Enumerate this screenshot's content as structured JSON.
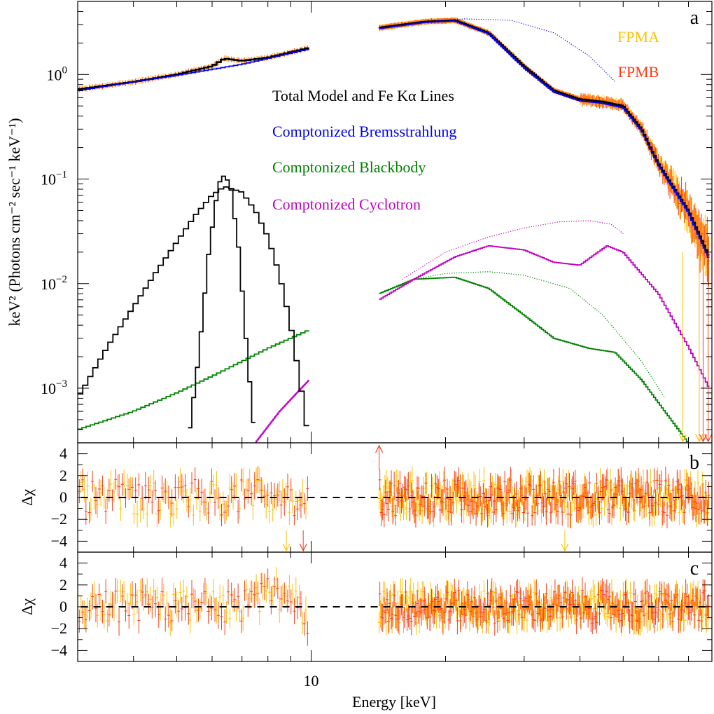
{
  "chart_data": [
    {
      "panel": "a",
      "type": "line",
      "xlabel": "Energy [keV]",
      "ylabel": "keV² (Photons cm⁻² sec⁻¹ keV⁻¹)",
      "xscale": "log",
      "yscale": "log",
      "xlim": [
        3.0,
        79.0
      ],
      "ylim": [
        0.0003,
        5.0
      ],
      "x_ticklabels": [
        "10"
      ],
      "y_ticklabels": [
        {
          "value": 1,
          "base": "10",
          "exp": "0"
        },
        {
          "value": 0.1,
          "base": "10",
          "exp": "−1"
        },
        {
          "value": 0.01,
          "base": "10",
          "exp": "−2"
        },
        {
          "value": 0.001,
          "base": "10",
          "exp": "−3"
        }
      ],
      "instrument_legend": [
        {
          "label": "FPMA",
          "color": "#FFC000"
        },
        {
          "label": "FPMB",
          "color": "#FF3A14"
        }
      ],
      "legend": [
        {
          "label": "Total Model and Fe Kα Lines",
          "color": "#000000"
        },
        {
          "label": "Comptonized Bremsstrahlung",
          "color": "#0000F0"
        },
        {
          "label": "Comptonized Blackbody",
          "color": "#008000"
        },
        {
          "label": "Comptonized Cyclotron",
          "color": "#C000C0"
        }
      ],
      "series": [
        {
          "name": "Total Model and Fe Kα Lines",
          "color": "#000000",
          "segments": [
            {
              "x": [
                3.0,
                4.0,
                5.0,
                6.0,
                6.4,
                7.0,
                8.0,
                9.9
              ],
              "y": [
                0.72,
                0.85,
                1.0,
                1.2,
                1.42,
                1.35,
                1.45,
                1.8
              ]
            },
            {
              "x": [
                14.2,
                18.0,
                21.0,
                25.0,
                30.0,
                35.0,
                40.0,
                45.0,
                50.0,
                55.0,
                60.0,
                70.0,
                78.0
              ],
              "y": [
                2.8,
                3.2,
                3.3,
                2.5,
                1.2,
                0.7,
                0.58,
                0.55,
                0.5,
                0.3,
                0.14,
                0.05,
                0.018
              ]
            }
          ]
        },
        {
          "name": "Comptonized Bremsstrahlung",
          "color": "#0000F0",
          "segments": [
            {
              "x": [
                3.0,
                5.0,
                7.0,
                9.9
              ],
              "y": [
                0.7,
                0.98,
                1.25,
                1.75
              ]
            },
            {
              "x": [
                14.2,
                18.0,
                21.0,
                25.0,
                30.0,
                35.0,
                40.0,
                45.0,
                50.0,
                55.0,
                60.0,
                70.0,
                78.0
              ],
              "y": [
                2.75,
                3.15,
                3.25,
                2.45,
                1.15,
                0.68,
                0.56,
                0.53,
                0.48,
                0.29,
                0.135,
                0.048,
                0.017
              ]
            }
          ]
        },
        {
          "name": "Comptonized Bremsstrahlung (unabsorbed)",
          "color": "#0000F0",
          "style": "dotted",
          "segments": [
            {
              "x": [
                14.2,
                18.0,
                22.0,
                28.0,
                35.0,
                42.0,
                48.0
              ],
              "y": [
                2.75,
                3.2,
                3.4,
                3.3,
                2.5,
                1.5,
                0.85
              ]
            }
          ]
        },
        {
          "name": "Comptonized Blackbody",
          "color": "#008000",
          "segments": [
            {
              "x": [
                3.0,
                4.0,
                5.0,
                6.0,
                7.0,
                8.0,
                9.9
              ],
              "y": [
                0.0004,
                0.0006,
                0.0009,
                0.0013,
                0.0018,
                0.0024,
                0.0036
              ]
            },
            {
              "x": [
                14.2,
                17.0,
                21.0,
                25.0,
                30.0,
                35.0,
                42.0,
                48.0,
                55.0,
                62.0,
                70.0
              ],
              "y": [
                0.008,
                0.011,
                0.0115,
                0.009,
                0.005,
                0.003,
                0.0024,
                0.0022,
                0.0012,
                0.0006,
                0.0003
              ]
            }
          ]
        },
        {
          "name": "Comptonized Blackbody (unabsorbed)",
          "color": "#008000",
          "style": "dotted",
          "segments": [
            {
              "x": [
                17.0,
                20.0,
                25.0,
                30.0,
                38.0,
                45.0,
                55.0,
                62.0
              ],
              "y": [
                0.011,
                0.0125,
                0.013,
                0.012,
                0.009,
                0.005,
                0.0018,
                0.0008
              ]
            }
          ]
        },
        {
          "name": "Comptonized Cyclotron",
          "color": "#C000C0",
          "segments": [
            {
              "x": [
                7.5,
                8.5,
                9.9
              ],
              "y": [
                0.0003,
                0.0006,
                0.0012
              ]
            },
            {
              "x": [
                14.2,
                17.0,
                21.0,
                25.0,
                30.0,
                35.0,
                40.0,
                46.0,
                50.0,
                60.0,
                70.0,
                78.0
              ],
              "y": [
                0.007,
                0.011,
                0.018,
                0.023,
                0.021,
                0.016,
                0.015,
                0.023,
                0.02,
                0.008,
                0.0025,
                0.001
              ]
            }
          ]
        },
        {
          "name": "Comptonized Cyclotron (unabsorbed)",
          "color": "#C000C0",
          "style": "dotted",
          "segments": [
            {
              "x": [
                16.0,
                20.0,
                25.0,
                30.0,
                36.0,
                42.0,
                47.0,
                50.0
              ],
              "y": [
                0.011,
                0.02,
                0.028,
                0.034,
                0.039,
                0.04,
                0.037,
                0.03
              ]
            }
          ]
        },
        {
          "name": "Fe Kα line (broad)",
          "color": "#000000",
          "segments": [
            {
              "x": [
                3.0,
                3.5,
                4.0,
                4.5,
                5.0,
                5.5,
                6.0,
                6.4,
                7.0,
                7.5,
                8.0,
                8.5,
                9.0,
                9.5,
                9.9
              ],
              "y": [
                0.0008,
                0.0025,
                0.006,
                0.013,
                0.025,
                0.045,
                0.07,
                0.085,
                0.075,
                0.05,
                0.028,
                0.012,
                0.004,
                0.001,
                0.0003
              ]
            }
          ]
        },
        {
          "name": "Fe Kα line (narrow)",
          "color": "#000000",
          "segments": [
            {
              "x": [
                5.3,
                5.6,
                5.9,
                6.2,
                6.4,
                6.6,
                6.9,
                7.2,
                7.5
              ],
              "y": [
                0.0003,
                0.002,
                0.02,
                0.09,
                0.11,
                0.085,
                0.02,
                0.002,
                0.0003
              ]
            }
          ]
        }
      ],
      "upper_limit_arrows": [
        {
          "x": 68.0,
          "color": "#FFC000"
        },
        {
          "x": 74.0,
          "color": "#FFC000"
        },
        {
          "x": 75.5,
          "color": "#FF3A14"
        },
        {
          "x": 77.5,
          "color": "#FF3A14"
        }
      ]
    },
    {
      "panel": "b",
      "type": "scatter",
      "ylabel": "Δχ",
      "xscale": "log",
      "xlim": [
        3.0,
        79.0
      ],
      "ylim": [
        -5,
        5
      ],
      "y_ticklabels": [
        "4",
        "2",
        "0",
        "−2",
        "−4"
      ],
      "zero_line": "dashed",
      "residual_range": [
        -3,
        3
      ],
      "out_of_range_arrows": [
        {
          "x": 14.2,
          "dir": "up",
          "color": "#FF3A14"
        },
        {
          "x": 8.8,
          "dir": "down",
          "color": "#FFC000"
        },
        {
          "x": 9.6,
          "dir": "down",
          "color": "#FF3A14"
        },
        {
          "x": 37.0,
          "dir": "down",
          "color": "#FFC000"
        }
      ]
    },
    {
      "panel": "c",
      "type": "scatter",
      "xlabel": "Energy [keV]",
      "ylabel": "Δχ",
      "xscale": "log",
      "xlim": [
        3.0,
        79.0
      ],
      "ylim": [
        -5,
        5
      ],
      "y_ticklabels": [
        "4",
        "2",
        "0",
        "−2",
        "−4"
      ],
      "zero_line": "dashed",
      "residual_range": [
        -3,
        3
      ]
    }
  ],
  "panel_letters": [
    "a",
    "b",
    "c"
  ],
  "instruments": {
    "fpma": {
      "label": "FPMA",
      "color": "#FFC000"
    },
    "fpmb": {
      "label": "FPMB",
      "color": "#FF3A14"
    }
  },
  "gap_keV": [
    9.9,
    14.2
  ]
}
